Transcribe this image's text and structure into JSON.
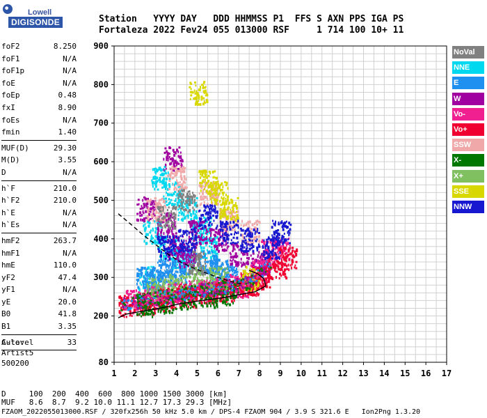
{
  "logo": {
    "line1": "Lowell",
    "line2": "DIGISONDE"
  },
  "header": {
    "row1": "Station   YYYY DAY   DDD HHMMSS P1  FFS S AXN PPS IGA PS",
    "row2": "Fortaleza 2022 Fev24 055 013000 RSF     1 714 100 10+ 11"
  },
  "params": [
    [
      {
        "k": "foF2",
        "v": "8.250"
      },
      {
        "k": "foF1",
        "v": "N/A"
      },
      {
        "k": "foF1p",
        "v": "N/A"
      },
      {
        "k": "foE",
        "v": "N/A"
      },
      {
        "k": "foEp",
        "v": "0.48"
      },
      {
        "k": "fxI",
        "v": "8.90"
      },
      {
        "k": "foEs",
        "v": "N/A"
      },
      {
        "k": "fmin",
        "v": "1.40"
      }
    ],
    [
      {
        "k": "MUF(D)",
        "v": "29.30"
      },
      {
        "k": "M(D)",
        "v": "3.55"
      },
      {
        "k": "D",
        "v": "N/A"
      }
    ],
    [
      {
        "k": "h`F",
        "v": "210.0"
      },
      {
        "k": "h`F2",
        "v": "210.0"
      },
      {
        "k": "h`E",
        "v": "N/A"
      },
      {
        "k": "h`Es",
        "v": "N/A"
      }
    ],
    [
      {
        "k": "hmF2",
        "v": "263.7"
      },
      {
        "k": "hmF1",
        "v": "N/A"
      },
      {
        "k": "hmE",
        "v": "110.0"
      },
      {
        "k": "yF2",
        "v": "47.4"
      },
      {
        "k": "yF1",
        "v": "N/A"
      },
      {
        "k": "yE",
        "v": "20.0"
      },
      {
        "k": "B0",
        "v": "41.8"
      },
      {
        "k": "B1",
        "v": "3.35"
      }
    ],
    [
      {
        "k": "C-level",
        "v": "33"
      }
    ]
  ],
  "auto": {
    "line1": "Auto:",
    "line2": "Artist5",
    "line3": "500200"
  },
  "legend": [
    {
      "label": "NoVal",
      "color": "#808080"
    },
    {
      "label": "NNE",
      "color": "#00d8f0"
    },
    {
      "label": "E",
      "color": "#2090f0"
    },
    {
      "label": "W",
      "color": "#a000a0"
    },
    {
      "label": "Vo-",
      "color": "#f02090"
    },
    {
      "label": "Vo+",
      "color": "#f00030"
    },
    {
      "label": "SSW",
      "color": "#f0a8a8"
    },
    {
      "label": "X-",
      "color": "#007800"
    },
    {
      "label": "X+",
      "color": "#80c060"
    },
    {
      "label": "SSE",
      "color": "#d8d800"
    },
    {
      "label": "NNW",
      "color": "#1818d0"
    }
  ],
  "footer": {
    "line1": "D     100  200  400  600  800 1000 1500 3000 [km]",
    "line2": "MUF   8.6  8.7  9.2 10.0 11.1 12.7 17.3 29.3 [MHz]",
    "line3": "FZAOM_2022055013000.RSF / 320fx256h 50 kHz 5.0 km / DPS-4 FZAOM 904 / 3.9 S 321.6 E   Ion2Png 1.3.20"
  },
  "chart_data": {
    "type": "scatter",
    "title": "",
    "xlabel": "",
    "ylabel": "",
    "xlim": [
      1,
      17
    ],
    "ylim": [
      80,
      900
    ],
    "x_ticks": [
      1,
      2,
      3,
      4,
      5,
      6,
      7,
      8,
      9,
      10,
      11,
      12,
      13,
      14,
      15,
      16,
      17
    ],
    "y_ticks": [
      80,
      200,
      300,
      400,
      500,
      600,
      700,
      800,
      900
    ],
    "grid": true,
    "legend_placement": "right",
    "series": [
      {
        "name": "",
        "style": "solid-black",
        "points": [
          [
            1.2,
            195
          ],
          [
            1.6,
            205
          ],
          [
            2.3,
            212
          ],
          [
            3.2,
            220
          ],
          [
            4.2,
            232
          ],
          [
            5.2,
            240
          ],
          [
            6.2,
            247
          ],
          [
            7.0,
            255
          ],
          [
            7.8,
            263
          ],
          [
            8.3,
            278
          ],
          [
            8.2,
            297
          ],
          [
            7.9,
            310
          ],
          [
            7.5,
            318
          ]
        ]
      },
      {
        "name": "",
        "style": "dashed-black",
        "points": [
          [
            1.2,
            465
          ],
          [
            1.8,
            438
          ],
          [
            2.4,
            410
          ],
          [
            3.0,
            385
          ],
          [
            3.6,
            360
          ],
          [
            4.2,
            340
          ],
          [
            4.8,
            325
          ],
          [
            5.4,
            312
          ],
          [
            6.0,
            300
          ],
          [
            6.6,
            290
          ],
          [
            7.2,
            282
          ]
        ]
      }
    ],
    "scatter_density": {
      "NNE": [
        [
          3.2,
          560
        ],
        [
          3.8,
          520
        ],
        [
          4.5,
          480
        ],
        [
          5.2,
          430
        ],
        [
          2.8,
          420
        ],
        [
          3.5,
          380
        ],
        [
          4.2,
          350
        ],
        [
          2.6,
          300
        ],
        [
          5.5,
          380
        ]
      ],
      "E": [
        [
          2.5,
          300
        ],
        [
          3.5,
          320
        ],
        [
          4.5,
          340
        ],
        [
          5.5,
          340
        ],
        [
          6.0,
          320
        ],
        [
          3.0,
          290
        ],
        [
          4.0,
          310
        ],
        [
          6.5,
          310
        ]
      ],
      "W": [
        [
          2.5,
          480
        ],
        [
          3.5,
          440
        ],
        [
          4.0,
          380
        ],
        [
          4.5,
          360
        ],
        [
          5.0,
          420
        ],
        [
          6.0,
          400
        ],
        [
          7.0,
          360
        ],
        [
          8.0,
          340
        ],
        [
          3.8,
          610
        ]
      ],
      "Vo-": [
        [
          2.0,
          240
        ],
        [
          3.0,
          250
        ],
        [
          4.0,
          260
        ],
        [
          5.0,
          265
        ],
        [
          6.0,
          270
        ],
        [
          7.0,
          280
        ],
        [
          8.0,
          320
        ],
        [
          8.5,
          370
        ],
        [
          9.0,
          380
        ]
      ],
      "Vo+": [
        [
          1.5,
          225
        ],
        [
          2.5,
          235
        ],
        [
          3.5,
          245
        ],
        [
          4.5,
          255
        ],
        [
          5.5,
          262
        ],
        [
          6.5,
          270
        ],
        [
          7.5,
          285
        ],
        [
          8.0,
          300
        ],
        [
          8.8,
          330
        ],
        [
          9.3,
          350
        ]
      ],
      "SSW": [
        [
          3.0,
          480
        ],
        [
          4.0,
          560
        ],
        [
          5.5,
          520
        ],
        [
          6.5,
          450
        ],
        [
          7.5,
          420
        ]
      ],
      "X-": [
        [
          2.5,
          230
        ],
        [
          3.5,
          240
        ],
        [
          4.5,
          250
        ],
        [
          5.5,
          255
        ],
        [
          6.5,
          262
        ]
      ],
      "X+": [
        [
          3.0,
          270
        ],
        [
          4.0,
          285
        ],
        [
          5.0,
          300
        ],
        [
          6.0,
          300
        ]
      ],
      "SSE": [
        [
          5.5,
          550
        ],
        [
          6.0,
          520
        ],
        [
          6.5,
          480
        ],
        [
          5.0,
          780
        ],
        [
          7.5,
          300
        ]
      ],
      "NNW": [
        [
          3.5,
          380
        ],
        [
          4.5,
          400
        ],
        [
          5.5,
          460
        ],
        [
          6.5,
          420
        ],
        [
          7.5,
          400
        ],
        [
          8.5,
          380
        ],
        [
          9.0,
          420
        ]
      ],
      "NoVal": [
        [
          3.5,
          460
        ],
        [
          4.5,
          500
        ],
        [
          5.0,
          340
        ]
      ]
    }
  }
}
